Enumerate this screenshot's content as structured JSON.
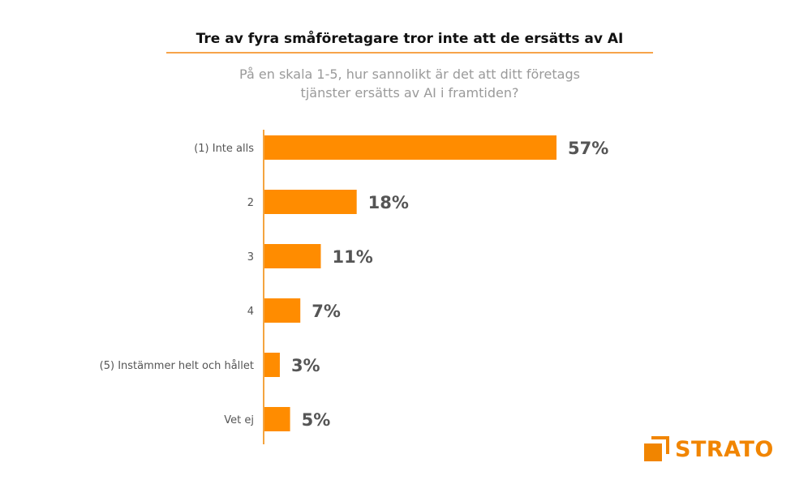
{
  "chart_data": {
    "type": "bar",
    "orientation": "horizontal",
    "title": "Tre av fyra småföretagare tror inte att de ersätts av AI",
    "subtitle": [
      "På en skala 1-5, hur sannolikt är det att ditt företags",
      "tjänster ersätts av AI i framtiden?"
    ],
    "categories": [
      "(1) Inte alls",
      "2",
      "3",
      "4",
      "(5) Instämmer helt och hållet",
      "Vet ej"
    ],
    "values": [
      57,
      18,
      11,
      7,
      3,
      5
    ],
    "data_labels": [
      "57%",
      "18%",
      "11%",
      "7%",
      "3%",
      "5%"
    ],
    "bar_color": "#ff8c00",
    "grid": false
  },
  "brand": {
    "name": "STRATO",
    "color": "#f18500"
  }
}
